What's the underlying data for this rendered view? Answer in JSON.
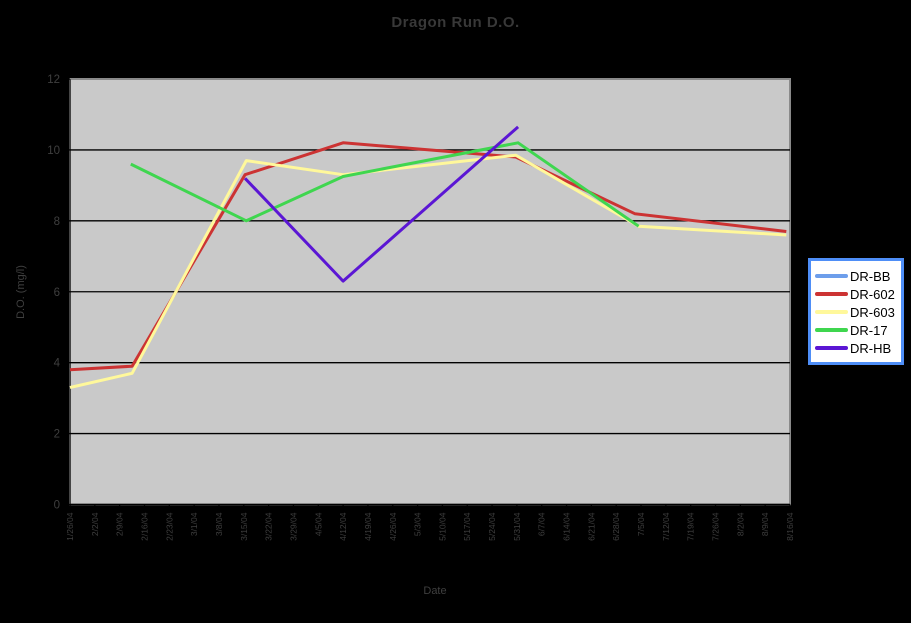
{
  "title": "Dragon Run D.O.",
  "chart_data": {
    "type": "line",
    "title": "Dragon Run D.O.",
    "xlabel": "Date",
    "ylabel": "D.O. (mg/l)",
    "ylim": [
      0,
      12
    ],
    "yticks": [
      0,
      2,
      4,
      6,
      8,
      10,
      12
    ],
    "grid": true,
    "legend_position": "right",
    "categories": [
      "1/26/04",
      "2/2/04",
      "2/9/04",
      "2/16/04",
      "2/23/04",
      "3/1/04",
      "3/8/04",
      "3/15/04",
      "3/22/04",
      "3/29/04",
      "4/5/04",
      "4/12/04",
      "4/19/04",
      "4/26/04",
      "5/3/04",
      "5/10/04",
      "5/17/04",
      "5/24/04",
      "5/31/04",
      "6/7/04",
      "6/14/04",
      "6/21/04",
      "6/28/04",
      "7/5/04",
      "7/12/04",
      "7/19/04",
      "7/26/04",
      "8/2/04",
      "8/9/04",
      "8/16/04"
    ],
    "series": [
      {
        "name": "DR-BB",
        "color": "#6d9eeb",
        "points": []
      },
      {
        "name": "DR-602",
        "color": "#cc3333",
        "points": [
          [
            0,
            3.8
          ],
          [
            2.5,
            3.9
          ],
          [
            7.05,
            9.3
          ],
          [
            11,
            10.2
          ],
          [
            17.95,
            9.8
          ],
          [
            22.75,
            8.2
          ],
          [
            28.85,
            7.7
          ]
        ]
      },
      {
        "name": "DR-603",
        "color": "#fff89b",
        "points": [
          [
            0,
            3.3
          ],
          [
            2.5,
            3.7
          ],
          [
            7.1,
            9.7
          ],
          [
            11,
            9.3
          ],
          [
            17.95,
            9.85
          ],
          [
            22.9,
            7.85
          ],
          [
            28.85,
            7.6
          ]
        ]
      },
      {
        "name": "DR-17",
        "color": "#3fd64f",
        "points": [
          [
            2.45,
            9.6
          ],
          [
            7.1,
            8.0
          ],
          [
            11,
            9.25
          ],
          [
            18.05,
            10.2
          ],
          [
            22.9,
            7.85
          ]
        ]
      },
      {
        "name": "DR-HB",
        "color": "#5b16d4",
        "points": [
          [
            7.05,
            9.2
          ],
          [
            11,
            6.3
          ],
          [
            18.05,
            10.65
          ]
        ]
      }
    ]
  },
  "legend": {
    "items": [
      {
        "label": "DR-BB",
        "color": "#6d9eeb"
      },
      {
        "label": "DR-602",
        "color": "#cc3333"
      },
      {
        "label": "DR-603",
        "color": "#fff89b"
      },
      {
        "label": "DR-17",
        "color": "#3fd64f"
      },
      {
        "label": "DR-HB",
        "color": "#5b16d4"
      }
    ]
  },
  "colors": {
    "background": "#000000",
    "plot_fill": "#c9c9c9",
    "plot_border": "#8a8a8a",
    "grid": "#000000",
    "axis": "#000000",
    "text": "#3f3f3f",
    "legend_border": "#4e8ef7",
    "legend_bg": "#ffffff",
    "legend_text": "#000000"
  }
}
